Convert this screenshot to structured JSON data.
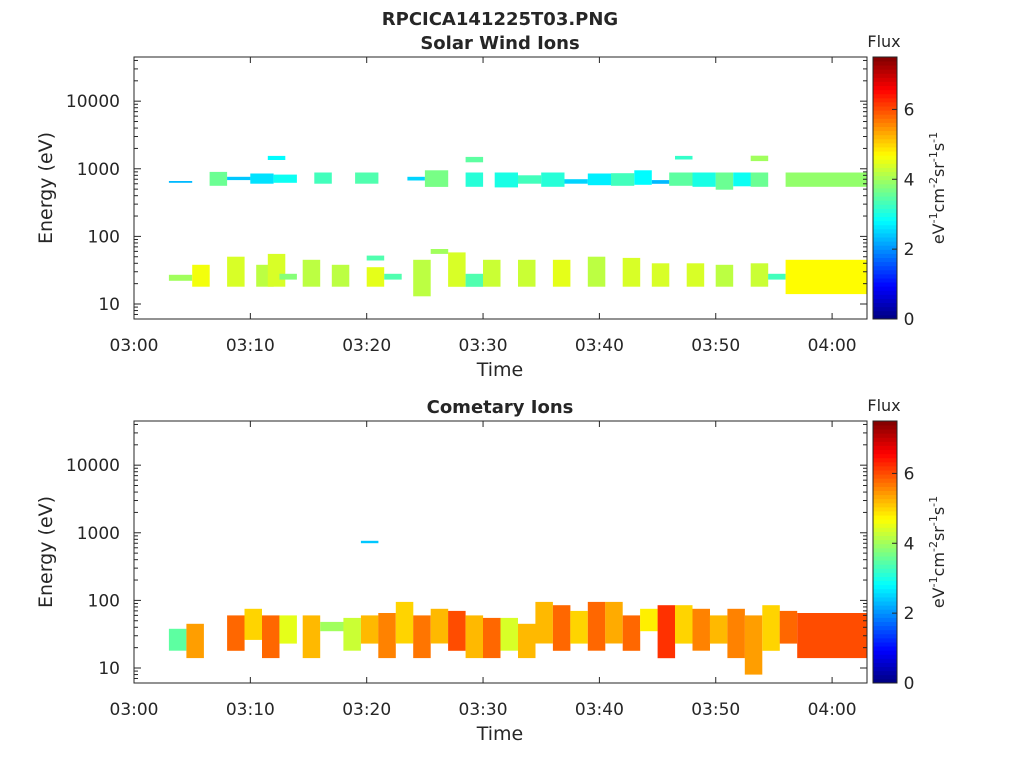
{
  "figure_title": "RPCICA141225T03.PNG",
  "colormap": [
    "#00007f",
    "#0000ff",
    "#007fff",
    "#00ffff",
    "#7fff7f",
    "#ffff00",
    "#ff7f00",
    "#ff0000",
    "#7f0000"
  ],
  "chart_data": [
    {
      "type": "heatmap",
      "title": "Solar Wind Ions",
      "xlabel": "Time",
      "ylabel": "Energy (eV)",
      "x_ticks": [
        "03:00",
        "03:10",
        "03:20",
        "03:30",
        "03:40",
        "03:50",
        "04:00"
      ],
      "y_ticks": [
        "10",
        "100",
        "1000",
        "10000"
      ],
      "y_scale": "log",
      "x_range_min": [
        0,
        63
      ],
      "y_range_ev": [
        6,
        45000
      ],
      "colorbar": {
        "label": "Flux",
        "units": "eV-1cm-2sr-1s-1",
        "ticks": [
          "0",
          "2",
          "4",
          "6"
        ],
        "range": [
          0,
          7.5
        ]
      },
      "cells": [
        [
          3,
          5,
          620,
          660,
          2.3
        ],
        [
          6.5,
          8,
          560,
          900,
          3.6
        ],
        [
          8,
          10,
          680,
          760,
          2.4
        ],
        [
          10,
          12,
          600,
          850,
          2.6
        ],
        [
          11.5,
          13,
          1350,
          1550,
          2.8
        ],
        [
          12,
          14,
          620,
          820,
          2.9
        ],
        [
          15.5,
          17,
          600,
          880,
          3.3
        ],
        [
          19,
          21,
          600,
          880,
          3.4
        ],
        [
          23.5,
          25,
          670,
          760,
          2.5
        ],
        [
          25,
          27,
          540,
          950,
          3.7
        ],
        [
          28.5,
          30,
          1250,
          1500,
          3.5
        ],
        [
          28.5,
          30,
          540,
          880,
          3.1
        ],
        [
          31,
          33,
          530,
          880,
          3.0
        ],
        [
          33,
          35,
          600,
          800,
          3.3
        ],
        [
          35,
          37,
          540,
          880,
          3.1
        ],
        [
          37,
          39,
          600,
          700,
          2.5
        ],
        [
          39,
          41,
          570,
          850,
          2.7
        ],
        [
          41,
          43,
          560,
          860,
          3.3
        ],
        [
          43,
          44.5,
          580,
          950,
          2.8
        ],
        [
          44.5,
          46,
          600,
          680,
          2.3
        ],
        [
          46,
          48,
          560,
          880,
          3.5
        ],
        [
          46.5,
          48,
          1370,
          1550,
          3.2
        ],
        [
          48,
          50,
          540,
          880,
          3.0
        ],
        [
          50,
          51.5,
          490,
          880,
          3.6
        ],
        [
          51.5,
          53.5,
          550,
          880,
          2.9
        ],
        [
          53,
          54.5,
          1300,
          1560,
          4.0
        ],
        [
          53,
          54.5,
          540,
          880,
          3.6
        ],
        [
          56,
          63,
          540,
          880,
          3.9
        ],
        [
          3,
          5,
          22,
          27,
          4.0
        ],
        [
          5,
          6.5,
          18,
          38,
          4.6
        ],
        [
          8,
          9.5,
          18,
          50,
          4.4
        ],
        [
          10.5,
          12,
          18,
          38,
          4.2
        ],
        [
          11.5,
          13,
          18,
          55,
          4.4
        ],
        [
          12.5,
          14,
          23,
          28,
          3.8
        ],
        [
          14.5,
          16,
          18,
          45,
          4.2
        ],
        [
          17,
          18.5,
          18,
          38,
          4.2
        ],
        [
          20,
          21.5,
          18,
          35,
          4.5
        ],
        [
          20,
          21.5,
          44,
          52,
          3.4
        ],
        [
          21.5,
          23,
          23,
          28,
          3.4
        ],
        [
          24,
          25.5,
          13,
          45,
          4.2
        ],
        [
          25.5,
          27,
          55,
          65,
          4.0
        ],
        [
          27,
          28.5,
          18,
          58,
          4.4
        ],
        [
          28.5,
          30,
          18,
          28,
          3.4
        ],
        [
          30,
          31.5,
          18,
          45,
          4.3
        ],
        [
          33,
          34.5,
          18,
          45,
          4.3
        ],
        [
          36,
          37.5,
          18,
          45,
          4.5
        ],
        [
          39,
          40.5,
          18,
          50,
          4.2
        ],
        [
          42,
          43.5,
          18,
          48,
          4.4
        ],
        [
          44.5,
          46,
          18,
          40,
          4.4
        ],
        [
          47.5,
          49,
          18,
          40,
          4.4
        ],
        [
          50,
          51.5,
          18,
          38,
          4.2
        ],
        [
          53,
          54.5,
          18,
          40,
          4.3
        ],
        [
          54.5,
          56,
          23,
          28,
          3.3
        ],
        [
          56,
          63,
          14,
          45,
          4.7
        ]
      ]
    },
    {
      "type": "heatmap",
      "title": "Cometary Ions",
      "xlabel": "Time",
      "ylabel": "Energy (eV)",
      "x_ticks": [
        "03:00",
        "03:10",
        "03:20",
        "03:30",
        "03:40",
        "03:50",
        "04:00"
      ],
      "y_ticks": [
        "10",
        "100",
        "1000",
        "10000"
      ],
      "y_scale": "log",
      "x_range_min": [
        0,
        63
      ],
      "y_range_ev": [
        6,
        45000
      ],
      "colorbar": {
        "label": "Flux",
        "units": "eV-1cm-2sr-1s-1",
        "ticks": [
          "0",
          "2",
          "4",
          "6"
        ],
        "range": [
          0,
          7.5
        ]
      },
      "cells": [
        [
          3,
          4.5,
          18,
          38,
          3.5
        ],
        [
          4.5,
          6,
          14,
          45,
          5.4
        ],
        [
          8,
          9.5,
          18,
          60,
          5.8
        ],
        [
          9.5,
          11,
          26,
          75,
          5.0
        ],
        [
          11,
          12.5,
          14,
          60,
          5.8
        ],
        [
          12.5,
          14,
          23,
          60,
          4.5
        ],
        [
          14.5,
          16,
          14,
          60,
          5.2
        ],
        [
          16,
          18,
          35,
          48,
          4.0
        ],
        [
          18,
          19.5,
          18,
          55,
          4.3
        ],
        [
          19.5,
          21,
          700,
          760,
          2.4
        ],
        [
          19.5,
          21,
          23,
          60,
          5.2
        ],
        [
          21,
          22.5,
          14,
          65,
          5.6
        ],
        [
          22.5,
          24,
          23,
          95,
          5.0
        ],
        [
          24,
          25.5,
          14,
          60,
          5.7
        ],
        [
          25.5,
          27,
          23,
          75,
          5.2
        ],
        [
          27,
          28.5,
          18,
          70,
          6.0
        ],
        [
          28.5,
          30,
          14,
          60,
          5.2
        ],
        [
          30,
          31.5,
          14,
          55,
          5.8
        ],
        [
          31.5,
          33,
          18,
          55,
          4.4
        ],
        [
          33,
          34.5,
          14,
          45,
          5.2
        ],
        [
          34.5,
          36,
          23,
          95,
          5.2
        ],
        [
          36,
          37.5,
          18,
          85,
          5.8
        ],
        [
          37.5,
          39,
          23,
          70,
          5.0
        ],
        [
          39,
          40.5,
          18,
          95,
          5.8
        ],
        [
          40.5,
          42,
          23,
          95,
          5.3
        ],
        [
          42,
          43.5,
          18,
          60,
          5.8
        ],
        [
          43.5,
          45,
          35,
          75,
          4.8
        ],
        [
          45,
          46.5,
          14,
          85,
          6.2
        ],
        [
          46.5,
          48,
          23,
          85,
          5.0
        ],
        [
          48,
          49.5,
          18,
          75,
          5.6
        ],
        [
          49.5,
          51,
          23,
          60,
          5.2
        ],
        [
          51,
          52.5,
          14,
          75,
          5.6
        ],
        [
          52.5,
          54,
          8,
          60,
          5.4
        ],
        [
          54,
          55.5,
          18,
          85,
          5.0
        ],
        [
          55.5,
          57,
          23,
          70,
          5.8
        ],
        [
          57,
          63,
          14,
          65,
          6.0
        ]
      ]
    }
  ]
}
